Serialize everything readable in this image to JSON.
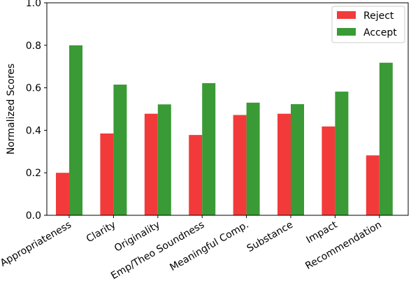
{
  "chart_data": {
    "type": "bar",
    "title": "",
    "xlabel": "",
    "ylabel": "Normalized Scores",
    "ylim": [
      0,
      1.0
    ],
    "yticks": [
      "0.0",
      "0.2",
      "0.4",
      "0.6",
      "0.8",
      "1.0"
    ],
    "categories": [
      "Appropriateness",
      "Clarity",
      "Originality",
      "Emp/Theo Soundness",
      "Meaningful Comp.",
      "Substance",
      "Impact",
      "Recommendation"
    ],
    "series": [
      {
        "name": "Reject",
        "color": "#f33a3a",
        "values": [
          0.2,
          0.385,
          0.478,
          0.378,
          0.472,
          0.478,
          0.418,
          0.282
        ]
      },
      {
        "name": "Accept",
        "color": "#3a9a35",
        "values": [
          0.8,
          0.615,
          0.522,
          0.622,
          0.53,
          0.523,
          0.582,
          0.718
        ]
      }
    ],
    "grid": false,
    "legend_position": "top-right"
  }
}
